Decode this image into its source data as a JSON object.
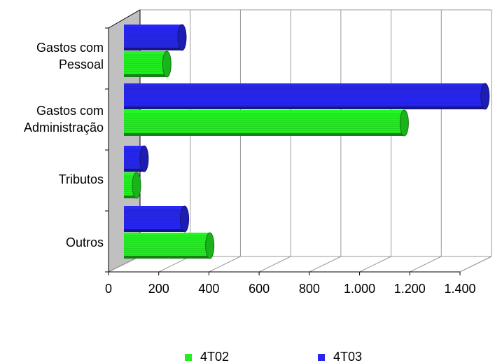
{
  "chart_data": {
    "type": "bar",
    "orientation": "horizontal",
    "three_d": true,
    "categories": [
      [
        "Gastos com",
        "Pessoal"
      ],
      [
        "Gastos com",
        "Administração"
      ],
      [
        "Tributos"
      ],
      [
        "Outros"
      ]
    ],
    "series": [
      {
        "name": "4T02",
        "color": "#22ee22",
        "values": [
          170,
          1110,
          50,
          340
        ]
      },
      {
        "name": "4T03",
        "color": "#2626ee",
        "values": [
          230,
          1430,
          80,
          240
        ]
      }
    ],
    "xticks": [
      "0",
      "200",
      "400",
      "600",
      "800",
      "1.000",
      "1.200",
      "1.400"
    ],
    "xlim": [
      0,
      1400
    ],
    "grid": true,
    "legend_position": "bottom"
  }
}
